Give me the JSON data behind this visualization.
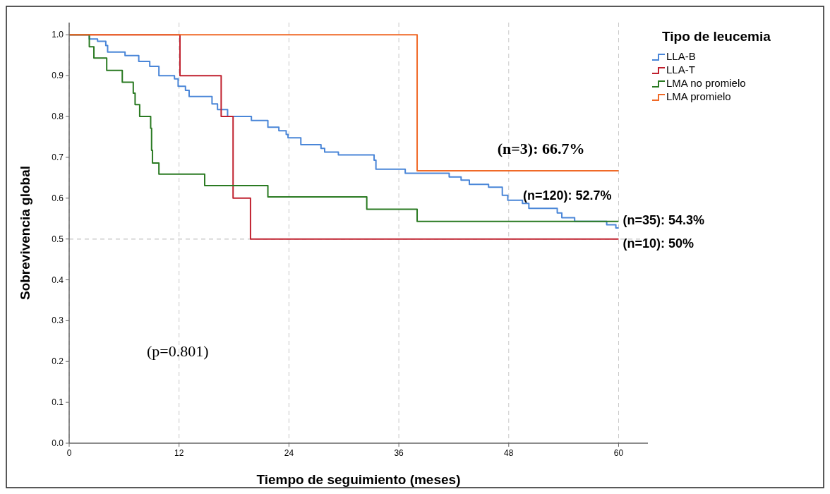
{
  "chart_data": {
    "type": "step",
    "xlabel": "Tiempo de seguimiento (meses)",
    "ylabel": "Sobrevivencia global",
    "legend_title": "Tipo de leucemia",
    "legend": "top right",
    "grid": "x",
    "xlim": [
      0,
      63.2
    ],
    "xticks": [
      0,
      12,
      24,
      36,
      48,
      60
    ],
    "ylim": [
      0,
      1.03
    ],
    "yticks": [
      {
        "value": 0,
        "label": "0.0"
      },
      {
        "value": 0.1,
        "label": "0.1"
      },
      {
        "value": 0.2,
        "label": "0.2"
      },
      {
        "value": 0.3,
        "label": "0.3"
      },
      {
        "value": 0.4,
        "label": "0.4"
      },
      {
        "value": 0.5,
        "label": "0.5"
      },
      {
        "value": 0.6,
        "label": "0.6"
      },
      {
        "value": 0.7,
        "label": "0.7"
      },
      {
        "value": 0.8,
        "label": "0.8"
      },
      {
        "value": 0.9,
        "label": "0.9"
      },
      {
        "value": 1,
        "label": "1.0"
      }
    ],
    "ref_lines": [
      {
        "axis": "y",
        "value": 0.5,
        "color": "#cccccc",
        "line_style": "dashed"
      }
    ],
    "series": [
      {
        "name": "LLA-B",
        "color": "#4a86d8",
        "x": [
          0,
          2.2,
          3.1,
          4.0,
          4.2,
          6.1,
          7.6,
          8.8,
          9.8,
          11.5,
          11.9,
          12.7,
          13.1,
          15.6,
          16.2,
          17.3,
          19.9,
          21.7,
          22.9,
          23.7,
          23.9,
          25.3,
          27.5,
          27.9,
          29.4,
          33.3,
          33.5,
          36.7,
          41.5,
          42.8,
          43.7,
          45.8,
          47.3,
          47.9,
          49.5,
          50.2,
          53.3,
          53.8,
          55.2,
          58.7,
          59.7,
          60
        ],
        "values": [
          1,
          0.99,
          0.984,
          0.974,
          0.958,
          0.949,
          0.935,
          0.923,
          0.9,
          0.892,
          0.874,
          0.864,
          0.849,
          0.831,
          0.817,
          0.8,
          0.79,
          0.774,
          0.765,
          0.756,
          0.748,
          0.731,
          0.722,
          0.713,
          0.706,
          0.693,
          0.671,
          0.661,
          0.652,
          0.644,
          0.634,
          0.627,
          0.607,
          0.595,
          0.587,
          0.575,
          0.564,
          0.552,
          0.543,
          0.535,
          0.527,
          0.527
        ]
      },
      {
        "name": "LLA-T",
        "color": "#c0202e",
        "x": [
          0,
          12.1,
          16.6,
          17.9,
          19.8,
          60
        ],
        "values": [
          1,
          0.9,
          0.8,
          0.6,
          0.5,
          0.5
        ]
      },
      {
        "name": "LMA no promielo",
        "color": "#2a7a22",
        "x": [
          0,
          2.2,
          2.7,
          4.1,
          5.8,
          7.0,
          7.2,
          7.7,
          8.9,
          9.0,
          9.1,
          9.8,
          14.8,
          21.7,
          32.5,
          38,
          60
        ],
        "values": [
          1,
          0.971,
          0.943,
          0.913,
          0.884,
          0.857,
          0.829,
          0.8,
          0.771,
          0.717,
          0.686,
          0.659,
          0.631,
          0.603,
          0.573,
          0.543,
          0.543
        ]
      },
      {
        "name": "LMA promielo",
        "color": "#f06a28",
        "x": [
          0,
          38,
          60
        ],
        "values": [
          1,
          0.667,
          0.667
        ]
      }
    ],
    "annotations": [
      "(n=3): 66.7%",
      "(n=120): 52.7%",
      "(n=35): 54.3%",
      "(n=10): 50%",
      "(p=0.801)"
    ]
  }
}
